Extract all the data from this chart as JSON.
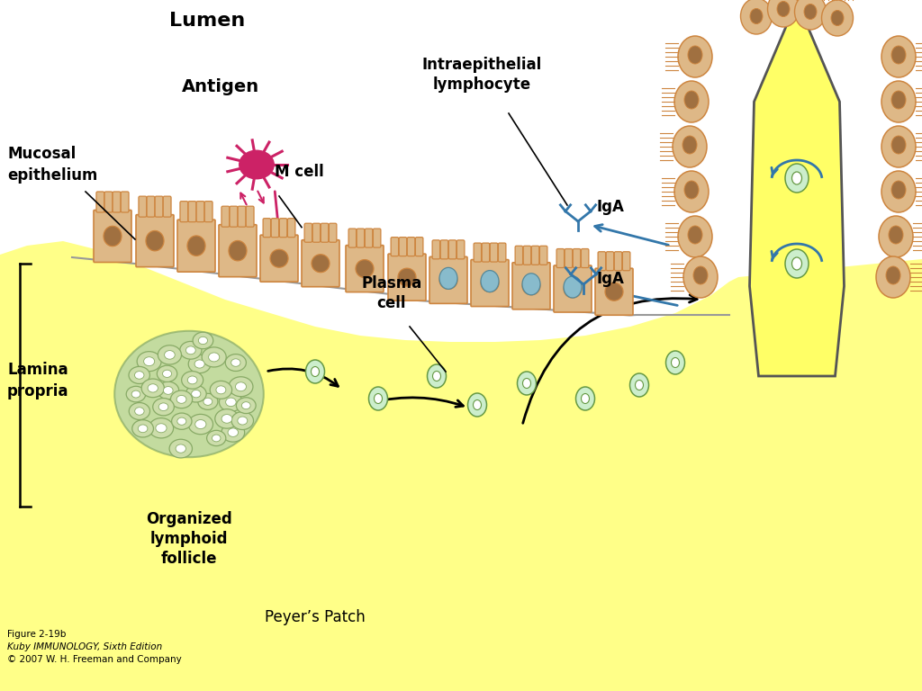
{
  "bg": "#FFFFFF",
  "yellow": "#FFFF88",
  "cell_fill": "#DEB887",
  "cell_outline": "#CD853F",
  "cell_nucleus": "#A07040",
  "villus_yellow": "#FFFF66",
  "antigen_color": "#CC2266",
  "arrow_magenta": "#CC2266",
  "arrow_blue": "#3377AA",
  "follicle_bg": "#AACCAA",
  "follicle_cell_outer": "#88AA66",
  "follicle_cell_inner": "#CCDDAA",
  "plasma_outer": "#88AA66",
  "plasma_inner": "#CCEECC",
  "gray_outline": "#888888",
  "labels": {
    "lumen": "Lumen",
    "antigen": "Antigen",
    "mucosal": "Mucosal\nepithelium",
    "mcell": "M cell",
    "intraepithelial": "Intraepithelial\nlymphocyte",
    "iga1": "IgA",
    "iga2": "IgA",
    "lamina": "Lamina\npropria",
    "plasma": "Plasma\ncell",
    "organized": "Organized\nlymphoid\nfollicle",
    "peyers": "Peyer’s Patch",
    "figure": "Figure 2-19b",
    "book": "Kuby IMMUNOLOGY, Sixth Edition",
    "copyright": "© 2007 W. H. Freeman and Company"
  }
}
